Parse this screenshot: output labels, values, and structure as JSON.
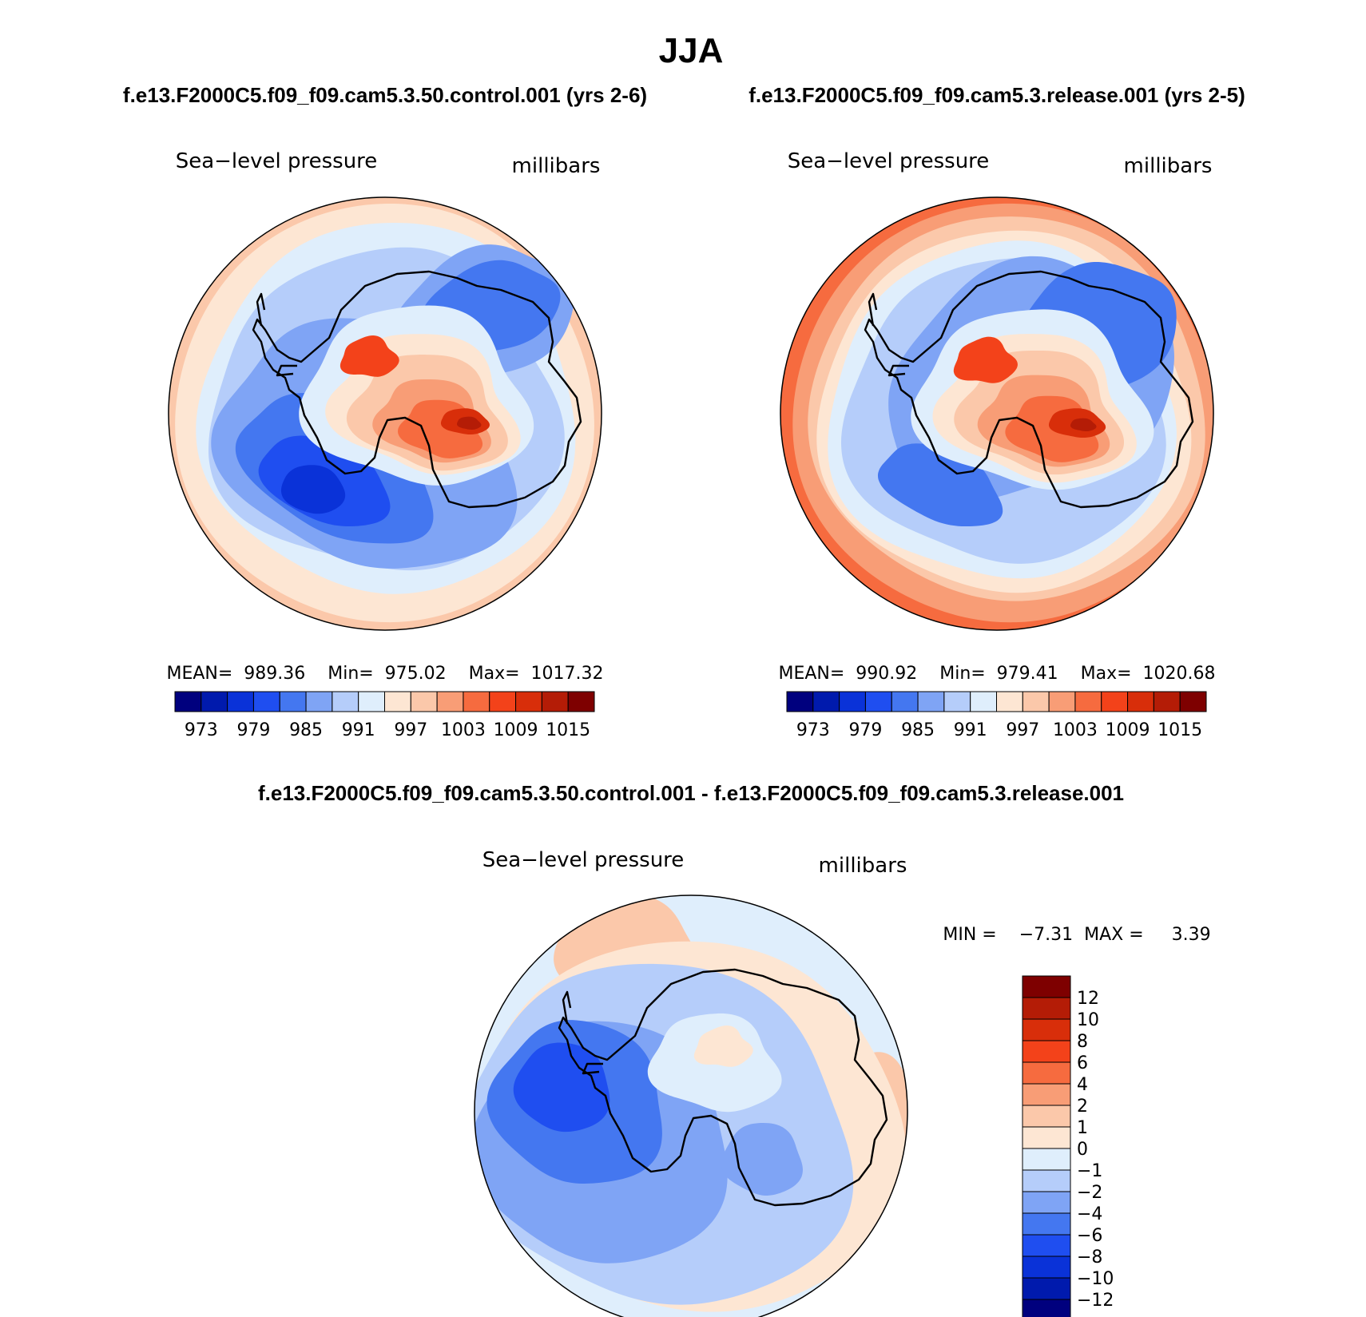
{
  "figure": {
    "title": "JJA",
    "diff_title": "f.e13.F2000C5.f09_f09.cam5.3.50.control.001 - f.e13.F2000C5.f09_f09.cam5.3.release.001"
  },
  "panels": [
    {
      "case_title": "f.e13.F2000C5.f09_f09.cam5.3.50.control.001 (yrs 2-6)",
      "variable": "Sea−level pressure",
      "units": "millibars",
      "stats": "MEAN=  989.36    Min=  975.02    Max=  1017.32"
    },
    {
      "case_title": "f.e13.F2000C5.f09_f09.cam5.3.release.001 (yrs 2-5)",
      "variable": "Sea−level pressure",
      "units": "millibars",
      "stats": "MEAN=  990.92    Min=  979.41    Max=  1020.68"
    },
    {
      "variable": "Sea−level pressure",
      "units": "millibars",
      "stats": "MIN =    −7.31  MAX =     3.39"
    }
  ],
  "chart_data": [
    {
      "type": "heatmap",
      "projection": "south polar stereographic",
      "title": "f.e13.F2000C5.f09_f09.cam5.3.50.control.001 (yrs 2-6)",
      "variable": "Sea-level pressure",
      "units": "millibars",
      "mean": 989.36,
      "min": 975.02,
      "max": 1017.32,
      "levels": [
        973,
        976,
        979,
        982,
        985,
        988,
        991,
        994,
        997,
        1000,
        1003,
        1006,
        1009,
        1012,
        1015
      ],
      "tick_labels": [
        "973",
        "979",
        "985",
        "991",
        "997",
        "1003",
        "1009",
        "1015"
      ],
      "colors": [
        "#00007e",
        "#001aad",
        "#0a32d8",
        "#1f4ef0",
        "#4477f0",
        "#7fa4f5",
        "#b5cdfa",
        "#dfeefc",
        "#fde6d3",
        "#fbc8aa",
        "#f89d76",
        "#f66b3f",
        "#f3421a",
        "#d82e0a",
        "#b41c06",
        "#7e0000"
      ]
    },
    {
      "type": "heatmap",
      "projection": "south polar stereographic",
      "title": "f.e13.F2000C5.f09_f09.cam5.3.release.001 (yrs 2-5)",
      "variable": "Sea-level pressure",
      "units": "millibars",
      "mean": 990.92,
      "min": 979.41,
      "max": 1020.68,
      "levels": [
        973,
        976,
        979,
        982,
        985,
        988,
        991,
        994,
        997,
        1000,
        1003,
        1006,
        1009,
        1012,
        1015
      ],
      "tick_labels": [
        "973",
        "979",
        "985",
        "991",
        "997",
        "1003",
        "1009",
        "1015"
      ],
      "colors": [
        "#00007e",
        "#001aad",
        "#0a32d8",
        "#1f4ef0",
        "#4477f0",
        "#7fa4f5",
        "#b5cdfa",
        "#dfeefc",
        "#fde6d3",
        "#fbc8aa",
        "#f89d76",
        "#f66b3f",
        "#f3421a",
        "#d82e0a",
        "#b41c06",
        "#7e0000"
      ]
    },
    {
      "type": "heatmap",
      "projection": "south polar stereographic",
      "title": "f.e13.F2000C5.f09_f09.cam5.3.50.control.001 - f.e13.F2000C5.f09_f09.cam5.3.release.001",
      "variable": "Sea-level pressure difference",
      "units": "millibars",
      "min": -7.31,
      "max": 3.39,
      "levels": [
        -12,
        -10,
        -8,
        -6,
        -4,
        -2,
        -1,
        0,
        1,
        2,
        4,
        6,
        8,
        10,
        12
      ],
      "tick_labels": [
        "12",
        "10",
        "8",
        "6",
        "4",
        "2",
        "1",
        "0",
        "−1",
        "−2",
        "−4",
        "−6",
        "−8",
        "−10",
        "−12"
      ],
      "colors": [
        "#7e0000",
        "#b41c06",
        "#d82e0a",
        "#f3421a",
        "#f66b3f",
        "#f89d76",
        "#fbc8aa",
        "#fde6d3",
        "#dfeefc",
        "#b5cdfa",
        "#7fa4f5",
        "#4477f0",
        "#1f4ef0",
        "#0a32d8",
        "#001aad",
        "#00007e"
      ]
    }
  ]
}
